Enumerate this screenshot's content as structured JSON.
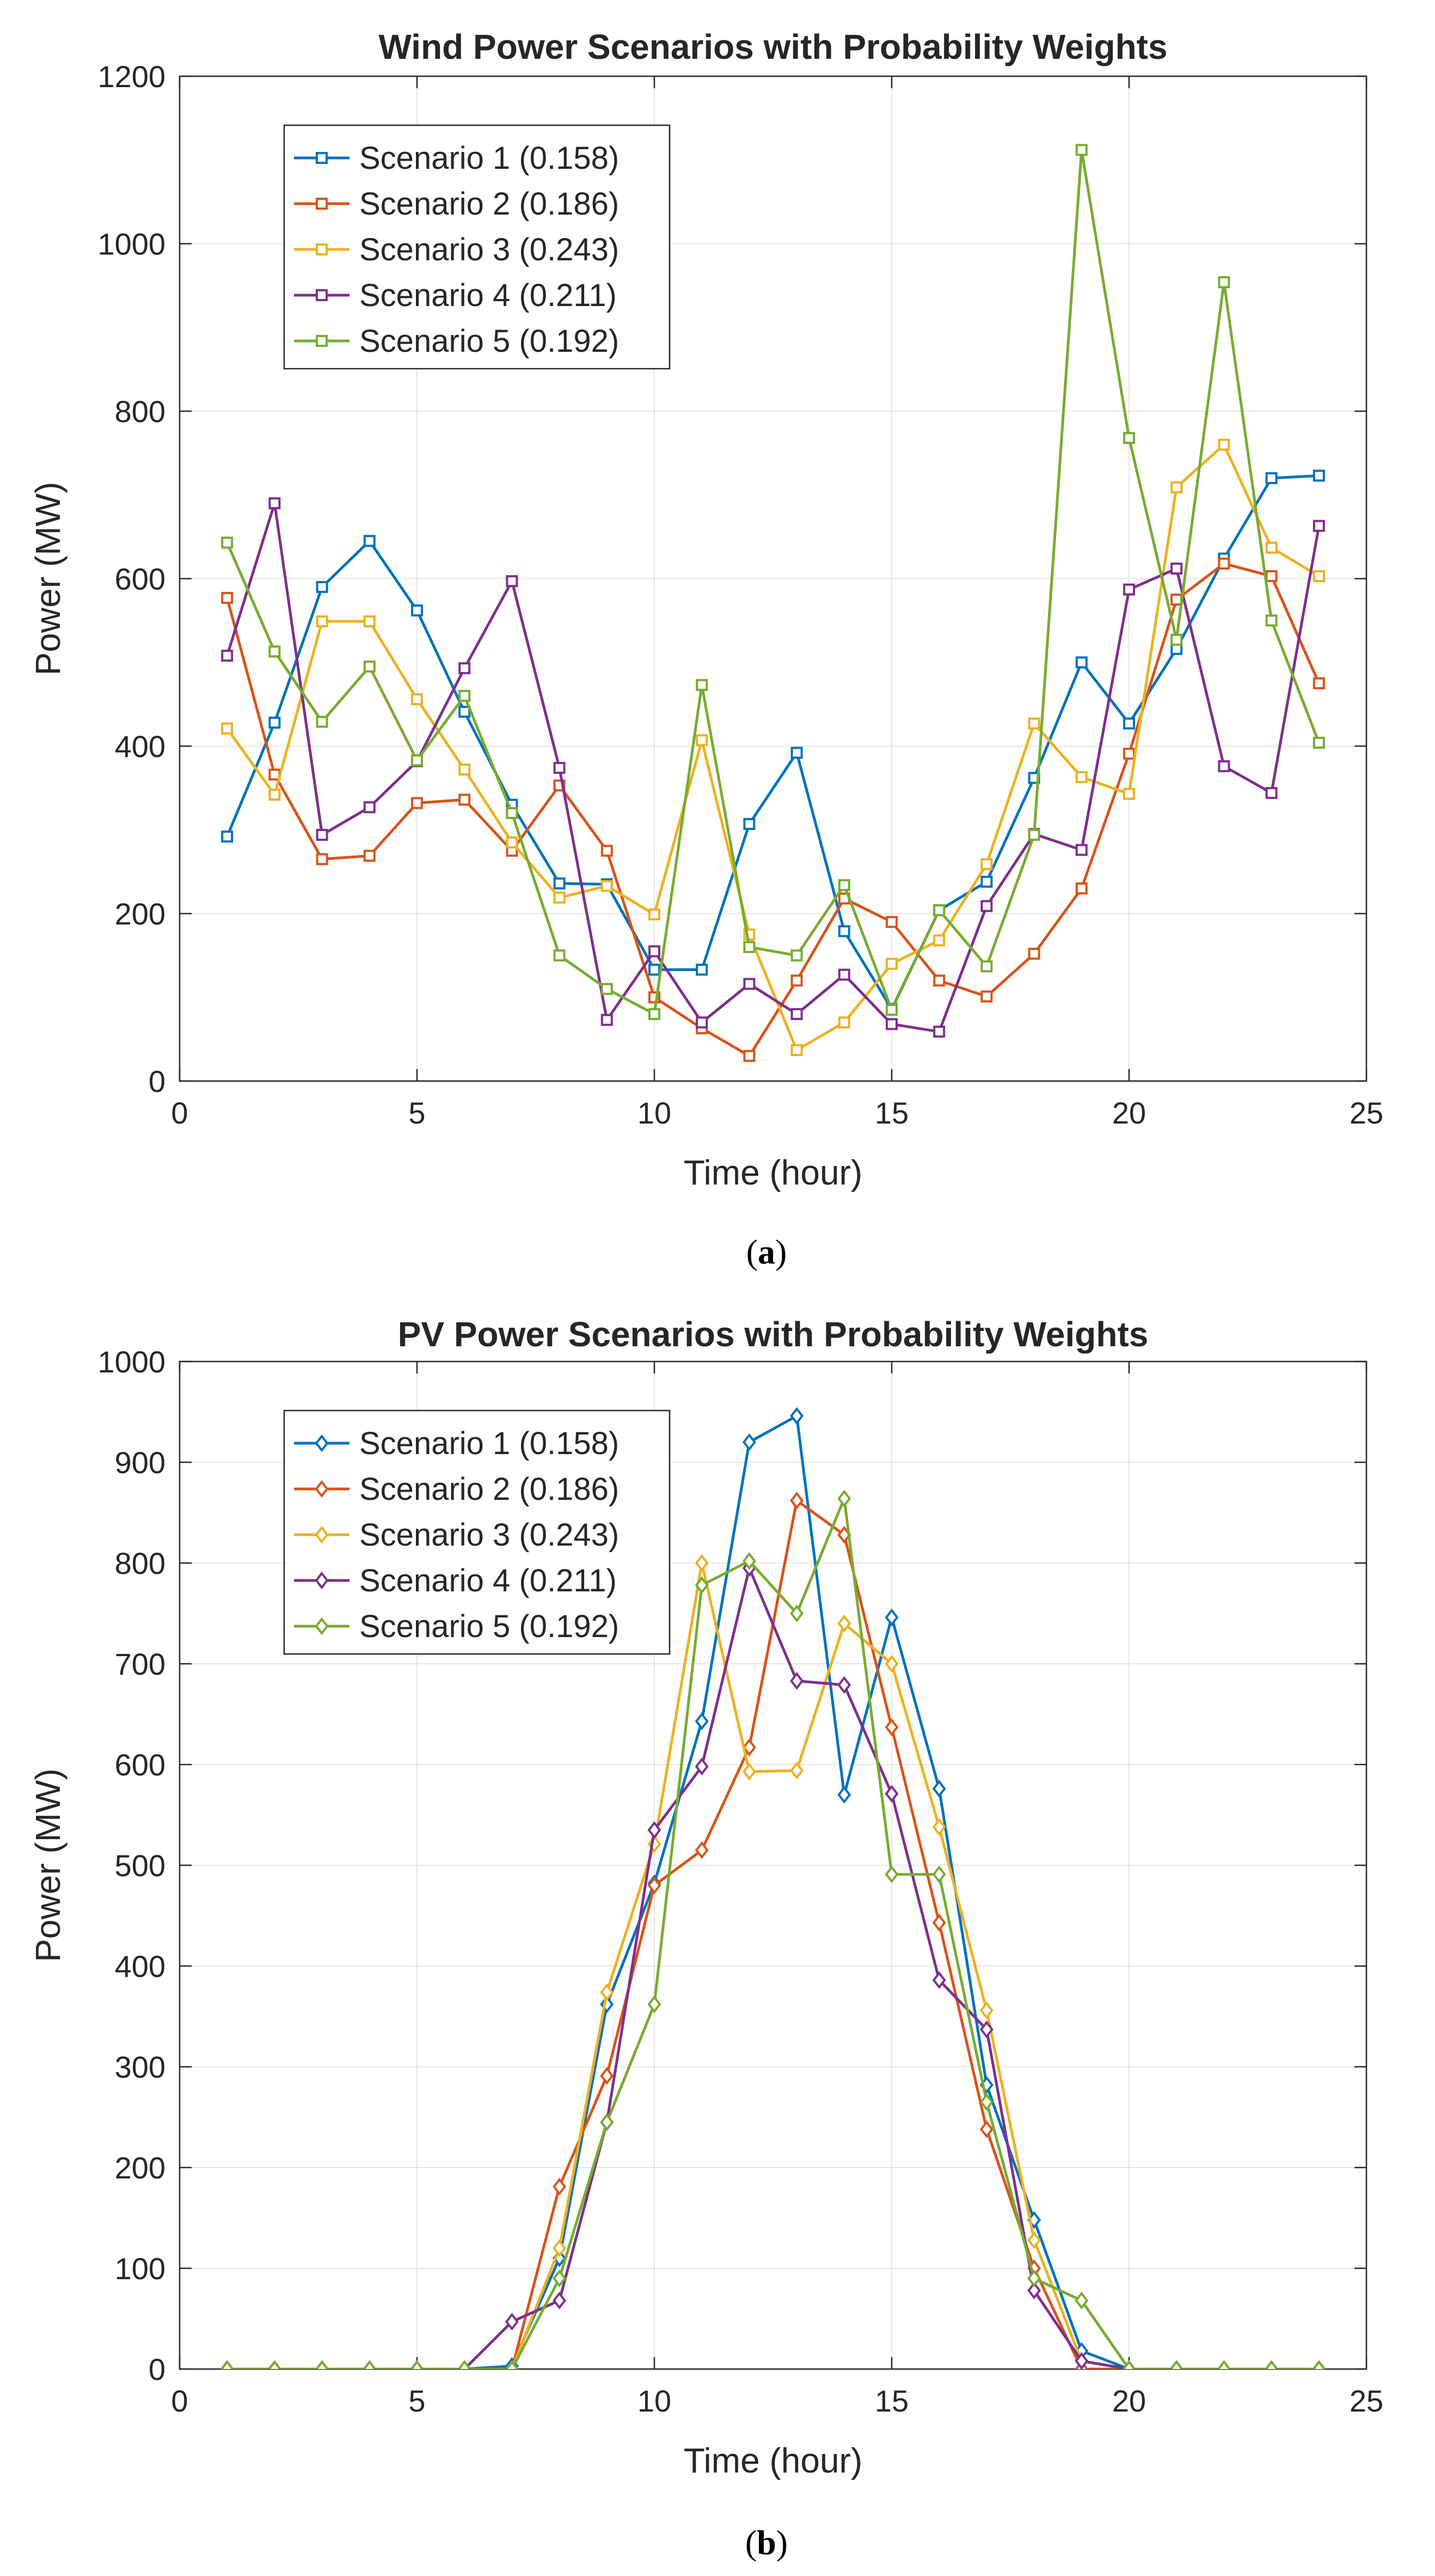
{
  "chart_data": [
    {
      "type": "line",
      "marker": "square",
      "title": "Wind Power Scenarios with Probability Weights",
      "xlabel": "Time (hour)",
      "ylabel": "Power (MW)",
      "xlim": [
        0,
        25
      ],
      "ylim": [
        0,
        1200
      ],
      "xticks": [
        0,
        5,
        10,
        15,
        20,
        25
      ],
      "yticks": [
        0,
        200,
        400,
        600,
        800,
        1000,
        1200
      ],
      "grid": true,
      "legend": "top-left",
      "caption": {
        "open": "(",
        "letter": "a",
        "close": ")"
      },
      "x": [
        1,
        2,
        3,
        4,
        5,
        6,
        7,
        8,
        9,
        10,
        11,
        12,
        13,
        14,
        15,
        16,
        17,
        18,
        19,
        20,
        21,
        22,
        23,
        24
      ],
      "series": [
        {
          "name": "Scenario 1 (0.158)",
          "color": "#0072BD",
          "values": [
            292,
            428,
            590,
            645,
            562,
            441,
            330,
            236,
            235,
            133,
            133,
            307,
            392,
            179,
            86,
            204,
            238,
            362,
            500,
            427,
            516,
            624,
            720,
            723
          ]
        },
        {
          "name": "Scenario 2 (0.186)",
          "color": "#D95319",
          "values": [
            577,
            366,
            265,
            269,
            332,
            336,
            275,
            353,
            275,
            100,
            63,
            30,
            120,
            218,
            190,
            120,
            101,
            152,
            230,
            391,
            575,
            618,
            603,
            475
          ]
        },
        {
          "name": "Scenario 3 (0.243)",
          "color": "#EDB120",
          "values": [
            421,
            342,
            549,
            549,
            456,
            372,
            285,
            219,
            233,
            199,
            407,
            175,
            37,
            70,
            140,
            168,
            259,
            427,
            363,
            343,
            709,
            760,
            637,
            603
          ]
        },
        {
          "name": "Scenario 4 (0.211)",
          "color": "#7E2F8E",
          "values": [
            508,
            690,
            294,
            327,
            382,
            493,
            597,
            374,
            73,
            155,
            70,
            116,
            80,
            127,
            68,
            59,
            209,
            295,
            276,
            587,
            612,
            376,
            344,
            663
          ]
        },
        {
          "name": "Scenario 5 (0.192)",
          "color": "#77AC30",
          "values": [
            643,
            513,
            429,
            495,
            383,
            460,
            320,
            150,
            110,
            80,
            473,
            160,
            150,
            234,
            85,
            204,
            137,
            294,
            1112,
            768,
            527,
            954,
            550,
            404
          ]
        }
      ]
    },
    {
      "type": "line",
      "marker": "diamond",
      "title": "PV Power Scenarios with Probability Weights",
      "xlabel": "Time (hour)",
      "ylabel": "Power (MW)",
      "xlim": [
        0,
        25
      ],
      "ylim": [
        0,
        1000
      ],
      "xticks": [
        0,
        5,
        10,
        15,
        20,
        25
      ],
      "yticks": [
        0,
        100,
        200,
        300,
        400,
        500,
        600,
        700,
        800,
        900,
        1000
      ],
      "grid": true,
      "legend": "top-left",
      "caption": {
        "open": "(",
        "letter": "b",
        "close": ")"
      },
      "x": [
        1,
        2,
        3,
        4,
        5,
        6,
        7,
        8,
        9,
        10,
        11,
        12,
        13,
        14,
        15,
        16,
        17,
        18,
        19,
        20,
        21,
        22,
        23,
        24
      ],
      "series": [
        {
          "name": "Scenario 1 (0.158)",
          "color": "#0072BD",
          "values": [
            0,
            0,
            0,
            0,
            0,
            0,
            3,
            110,
            362,
            482,
            643,
            920,
            946,
            570,
            746,
            576,
            282,
            148,
            18,
            0,
            0,
            0,
            0,
            0
          ]
        },
        {
          "name": "Scenario 2 (0.186)",
          "color": "#D95319",
          "values": [
            0,
            0,
            0,
            0,
            0,
            0,
            0,
            181,
            291,
            480,
            515,
            617,
            862,
            828,
            637,
            443,
            238,
            100,
            0,
            0,
            0,
            0,
            0,
            0
          ]
        },
        {
          "name": "Scenario 3 (0.243)",
          "color": "#EDB120",
          "values": [
            0,
            0,
            0,
            0,
            0,
            0,
            0,
            120,
            374,
            521,
            800,
            593,
            594,
            740,
            700,
            538,
            356,
            128,
            8,
            0,
            0,
            0,
            0,
            0
          ]
        },
        {
          "name": "Scenario 4 (0.211)",
          "color": "#7E2F8E",
          "values": [
            0,
            0,
            0,
            0,
            0,
            0,
            47,
            68,
            245,
            535,
            598,
            795,
            683,
            679,
            571,
            386,
            337,
            78,
            8,
            0,
            0,
            0,
            0,
            0
          ]
        },
        {
          "name": "Scenario 5 (0.192)",
          "color": "#77AC30",
          "values": [
            0,
            0,
            0,
            0,
            0,
            0,
            0,
            90,
            245,
            362,
            778,
            802,
            750,
            864,
            491,
            491,
            265,
            90,
            68,
            0,
            0,
            0,
            0,
            0
          ]
        }
      ]
    }
  ]
}
